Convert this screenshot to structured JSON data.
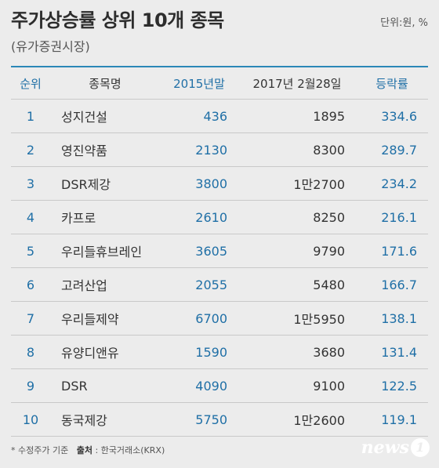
{
  "title": "주가상승률 상위 10개 종목",
  "subtitle": "(유가증권시장)",
  "unit": "단위:원, %",
  "columns": {
    "rank": "순위",
    "name": "종목명",
    "v2015": "2015년말",
    "v2017": "2017년 2월28일",
    "rate": "등락률"
  },
  "rows": [
    {
      "rank": "1",
      "name": "성지건설",
      "v2015": "436",
      "v2017": "1895",
      "rate": "334.6"
    },
    {
      "rank": "2",
      "name": "영진약품",
      "v2015": "2130",
      "v2017": "8300",
      "rate": "289.7"
    },
    {
      "rank": "3",
      "name": "DSR제강",
      "v2015": "3800",
      "v2017": "1만2700",
      "rate": "234.2"
    },
    {
      "rank": "4",
      "name": "카프로",
      "v2015": "2610",
      "v2017": "8250",
      "rate": "216.1"
    },
    {
      "rank": "5",
      "name": "우리들휴브레인",
      "v2015": "3605",
      "v2017": "9790",
      "rate": "171.6"
    },
    {
      "rank": "6",
      "name": "고려산업",
      "v2015": "2055",
      "v2017": "5480",
      "rate": "166.7"
    },
    {
      "rank": "7",
      "name": "우리들제약",
      "v2015": "6700",
      "v2017": "1만5950",
      "rate": "138.1"
    },
    {
      "rank": "8",
      "name": "유양디앤유",
      "v2015": "1590",
      "v2017": "3680",
      "rate": "131.4"
    },
    {
      "rank": "9",
      "name": "DSR",
      "v2015": "4090",
      "v2017": "9100",
      "rate": "122.5"
    },
    {
      "rank": "10",
      "name": "동국제강",
      "v2015": "5750",
      "v2017": "1만2600",
      "rate": "119.1"
    }
  ],
  "footer": {
    "note": "* 수정주가 기준",
    "source_label": "출처",
    "source": ": 한국거래소(KRX)"
  },
  "logo": {
    "text": "news",
    "num": "1"
  },
  "colors": {
    "accent": "#1f6fa6",
    "rule": "#2b87b7",
    "background": "#ececec"
  }
}
